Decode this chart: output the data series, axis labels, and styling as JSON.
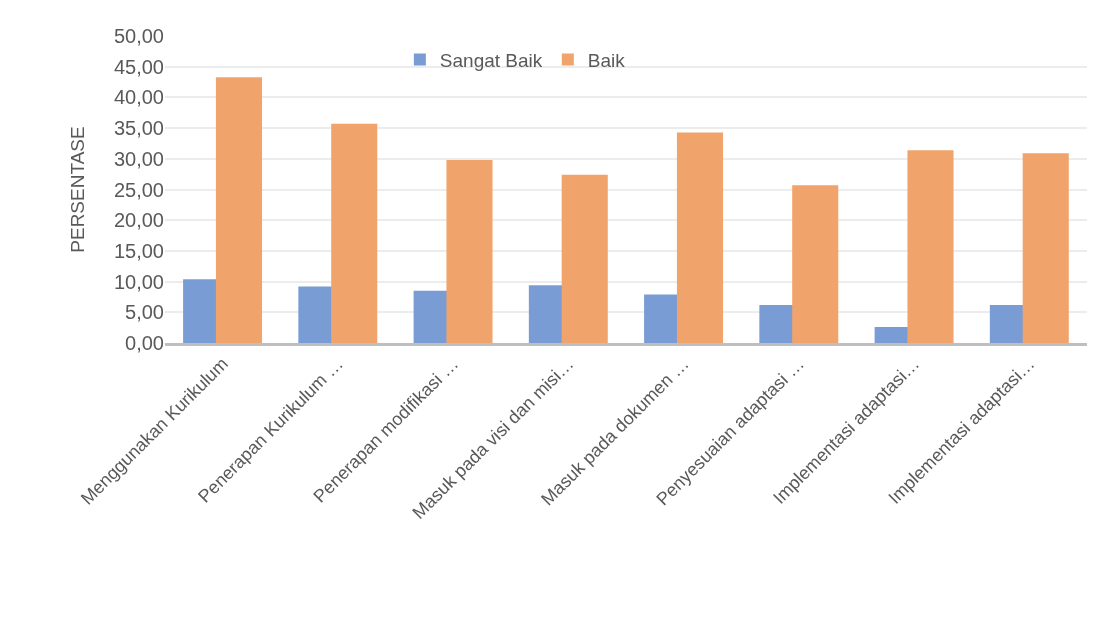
{
  "chart_data": {
    "type": "bar",
    "ylabel": "PERSENTASE",
    "categories": [
      "Menggunakan Kurikulum",
      "Penerapan Kurikulum …",
      "Penerapan modifikasi …",
      "Masuk pada visi dan misi…",
      "Masuk pada dokumen …",
      "Penyesuaian adaptasi …",
      "Implementasi adaptasi…",
      "Implementasi adaptasi…"
    ],
    "series": [
      {
        "name": "Sangat Baik",
        "color": "#7a9cd5",
        "values": [
          10.4,
          9.2,
          8.5,
          9.4,
          7.9,
          6.2,
          2.6,
          6.2
        ]
      },
      {
        "name": "Baik",
        "color": "#f0a46c",
        "values": [
          43.3,
          35.7,
          29.8,
          27.4,
          34.3,
          25.7,
          31.4,
          30.9
        ]
      }
    ],
    "ylim": [
      0,
      50
    ],
    "yticks": [
      {
        "value": 0,
        "label": "0,00"
      },
      {
        "value": 5,
        "label": "5,00"
      },
      {
        "value": 10,
        "label": "10,00"
      },
      {
        "value": 15,
        "label": "15,00"
      },
      {
        "value": 20,
        "label": "20,00"
      },
      {
        "value": 25,
        "label": "25,00"
      },
      {
        "value": 30,
        "label": "30,00"
      },
      {
        "value": 35,
        "label": "35,00"
      },
      {
        "value": 40,
        "label": "40,00"
      },
      {
        "value": 45,
        "label": "45,00"
      },
      {
        "value": 50,
        "label": "50,00"
      }
    ],
    "grid": "y",
    "legend": "top"
  }
}
